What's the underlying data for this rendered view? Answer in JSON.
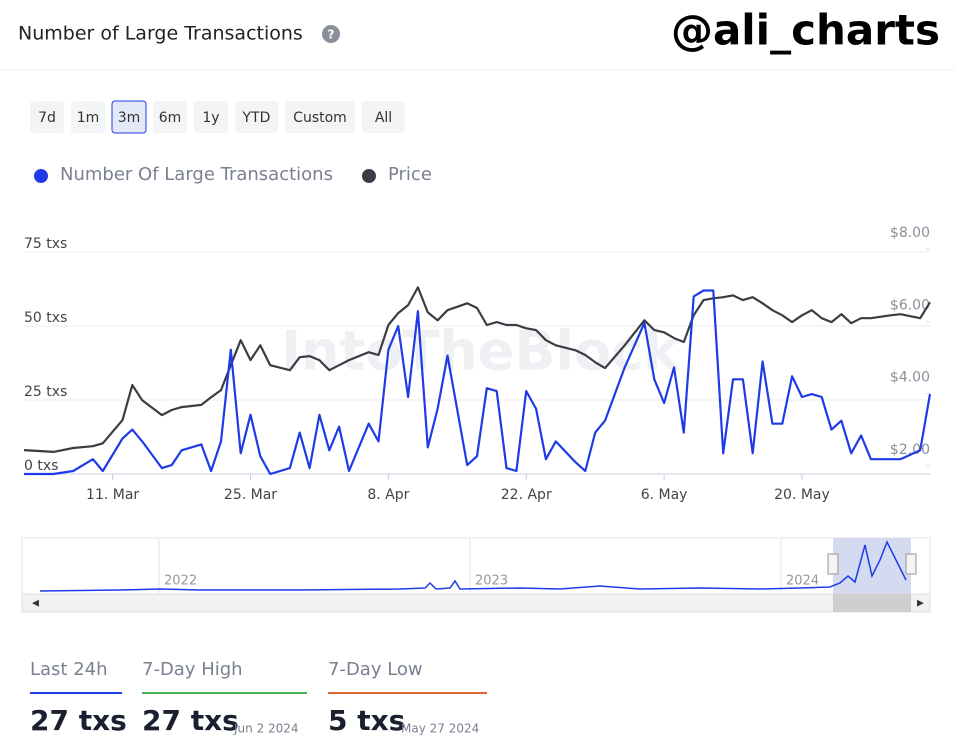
{
  "header": {
    "title": "Number of Large Transactions",
    "help": "?",
    "handle": "@ali_charts"
  },
  "ranges": [
    "7d",
    "1m",
    "3m",
    "6m",
    "1y",
    "YTD",
    "Custom",
    "All"
  ],
  "selected_range": "3m",
  "watermark": "IntoTheBlock",
  "chart_data": {
    "type": "line",
    "x": [
      "2024-03-02",
      "2024-03-05",
      "2024-03-07",
      "2024-03-09",
      "2024-03-10",
      "2024-03-12",
      "2024-03-13",
      "2024-03-14",
      "2024-03-16",
      "2024-03-17",
      "2024-03-18",
      "2024-03-20",
      "2024-03-21",
      "2024-03-22",
      "2024-03-23",
      "2024-03-24",
      "2024-03-25",
      "2024-03-26",
      "2024-03-27",
      "2024-03-29",
      "2024-03-30",
      "2024-03-31",
      "2024-04-01",
      "2024-04-02",
      "2024-04-03",
      "2024-04-04",
      "2024-04-06",
      "2024-04-07",
      "2024-04-08",
      "2024-04-09",
      "2024-04-10",
      "2024-04-11",
      "2024-04-12",
      "2024-04-13",
      "2024-04-14",
      "2024-04-16",
      "2024-04-17",
      "2024-04-18",
      "2024-04-19",
      "2024-04-20",
      "2024-04-21",
      "2024-04-22",
      "2024-04-23",
      "2024-04-24",
      "2024-04-25",
      "2024-04-27",
      "2024-04-28",
      "2024-04-29",
      "2024-04-30",
      "2024-05-02",
      "2024-05-04",
      "2024-05-05",
      "2024-05-06",
      "2024-05-07",
      "2024-05-08",
      "2024-05-09",
      "2024-05-10",
      "2024-05-11",
      "2024-05-12",
      "2024-05-13",
      "2024-05-14",
      "2024-05-15",
      "2024-05-16",
      "2024-05-17",
      "2024-05-18",
      "2024-05-19",
      "2024-05-20",
      "2024-05-21",
      "2024-05-22",
      "2024-05-23",
      "2024-05-24",
      "2024-05-25",
      "2024-05-26",
      "2024-05-27",
      "2024-05-29",
      "2024-05-30",
      "2024-06-01",
      "2024-06-02"
    ],
    "xlim": [
      "2024-03-02",
      "2024-06-02"
    ],
    "xticks": [
      {
        "value": "2024-03-11",
        "label": "11. Mar"
      },
      {
        "value": "2024-03-25",
        "label": "25. Mar"
      },
      {
        "value": "2024-04-08",
        "label": "8. Apr"
      },
      {
        "value": "2024-04-22",
        "label": "22. Apr"
      },
      {
        "value": "2024-05-06",
        "label": "6. May"
      },
      {
        "value": "2024-05-20",
        "label": "20. May"
      }
    ],
    "ylim": [
      0,
      75
    ],
    "yticks": [
      {
        "value": 0,
        "label": "0 txs"
      },
      {
        "value": 25,
        "label": "25 txs"
      },
      {
        "value": 50,
        "label": "50 txs"
      },
      {
        "value": 75,
        "label": "75 txs"
      }
    ],
    "y2lim": [
      1.78,
      7.92
    ],
    "y2ticks": [
      {
        "value": 2,
        "label": "$2.00"
      },
      {
        "value": 4,
        "label": "$4.00"
      },
      {
        "value": 6,
        "label": "$6.00"
      },
      {
        "value": 8,
        "label": "$8.00"
      }
    ],
    "grid": true,
    "series": [
      {
        "name": "Number Of Large Transactions",
        "color": "#1f3be8",
        "values": [
          0,
          0,
          1,
          5,
          1,
          12,
          15,
          11,
          2,
          3,
          8,
          10,
          1,
          11,
          42,
          7,
          20,
          6,
          0,
          2,
          14,
          2,
          20,
          8,
          16,
          1,
          17,
          11,
          42,
          50,
          26,
          55,
          9,
          22,
          40,
          3,
          6,
          29,
          28,
          2,
          1,
          28,
          22,
          5,
          11,
          4,
          1,
          14,
          18,
          36,
          51,
          32,
          24,
          36,
          14,
          60,
          62,
          62,
          7,
          32,
          32,
          7,
          38,
          17,
          17,
          33,
          26,
          27,
          26,
          15,
          18,
          7,
          13,
          5,
          5,
          5,
          8,
          27
        ]
      },
      {
        "name": "Price",
        "color": "#3a3d44",
        "axis": "y2",
        "values": [
          2.44,
          2.39,
          2.5,
          2.55,
          2.63,
          3.27,
          4.24,
          3.82,
          3.41,
          3.55,
          3.63,
          3.69,
          3.9,
          4.1,
          4.79,
          5.48,
          4.93,
          5.34,
          4.79,
          4.65,
          5.01,
          5.04,
          4.93,
          4.65,
          4.79,
          4.93,
          5.15,
          5.07,
          5.9,
          6.23,
          6.45,
          6.94,
          6.25,
          6.03,
          6.31,
          6.5,
          6.37,
          5.9,
          5.98,
          5.9,
          5.9,
          5.81,
          5.76,
          5.48,
          5.34,
          5.2,
          5.07,
          4.87,
          4.71,
          5.34,
          6.03,
          5.76,
          5.7,
          5.54,
          5.43,
          6.17,
          6.59,
          6.64,
          6.67,
          6.72,
          6.59,
          6.67,
          6.5,
          6.31,
          6.17,
          5.98,
          6.17,
          6.31,
          6.09,
          5.98,
          6.2,
          5.95,
          6.09,
          6.09,
          6.17,
          6.2,
          6.09,
          6.53
        ]
      }
    ]
  },
  "navigator": {
    "labels": [
      "2022",
      "2023",
      "2024"
    ]
  },
  "stats": [
    {
      "label": "Last 24h",
      "value": "27 txs"
    },
    {
      "label": "7-Day High",
      "value": "27 txs",
      "date": "Jun 2 2024"
    },
    {
      "label": "7-Day Low",
      "value": "5 txs",
      "date": "May 27 2024"
    }
  ]
}
